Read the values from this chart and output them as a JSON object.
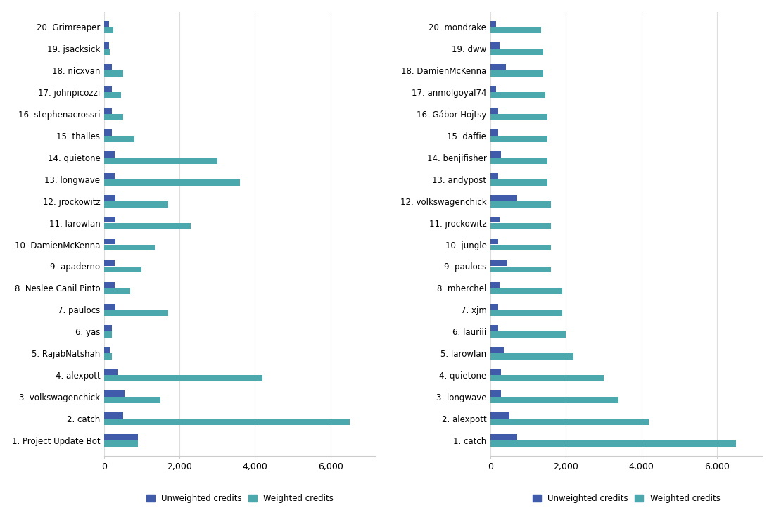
{
  "left_chart": {
    "labels": [
      "1. Project Update Bot",
      "2. catch",
      "3. volkswagenchick",
      "4. alexpott",
      "5. RajabNatshah",
      "6. yas",
      "7. paulocs",
      "8. Neslee Canil Pinto",
      "9. apaderno",
      "10. DamienMcKenna",
      "11. larowlan",
      "12. jrockowitz",
      "13. longwave",
      "14. quietone",
      "15. thalles",
      "16. stephenacrossri",
      "17. johnpicozzi",
      "18. nicxvan",
      "19. jsacksick",
      "20. Grimreaper"
    ],
    "unweighted": [
      900,
      500,
      550,
      350,
      150,
      200,
      300,
      280,
      280,
      300,
      300,
      300,
      280,
      280,
      200,
      200,
      200,
      200,
      130,
      130
    ],
    "weighted": [
      900,
      6500,
      1500,
      4200,
      200,
      200,
      1700,
      700,
      1000,
      1350,
      2300,
      1700,
      3600,
      3000,
      800,
      500,
      450,
      500,
      150,
      250
    ]
  },
  "right_chart": {
    "labels": [
      "1. catch",
      "2. alexpott",
      "3. longwave",
      "4. quietone",
      "5. larowlan",
      "6. lauriii",
      "7. xjm",
      "8. mherchel",
      "9. paulocs",
      "10. jungle",
      "11. jrockowitz",
      "12. volkswagenchick",
      "13. andypost",
      "14. benjifisher",
      "15. daffie",
      "16. Gábor Hojtsy",
      "17. anmolgoyal74",
      "18. DamienMcKenna",
      "19. dww",
      "20. mondrake"
    ],
    "unweighted": [
      700,
      500,
      280,
      280,
      350,
      200,
      200,
      250,
      450,
      200,
      250,
      700,
      200,
      280,
      200,
      200,
      150,
      400,
      250,
      150
    ],
    "weighted": [
      6500,
      4200,
      3400,
      3000,
      2200,
      2000,
      1900,
      1900,
      1600,
      1600,
      1600,
      1600,
      1500,
      1500,
      1500,
      1500,
      1450,
      1400,
      1400,
      1350
    ]
  },
  "unweighted_color": "#3f5ba9",
  "weighted_color": "#4ba8ad",
  "background_color": "#ffffff",
  "xlim": [
    0,
    7200
  ],
  "xticks": [
    0,
    2000,
    4000,
    6000
  ],
  "xticklabels": [
    "0",
    "2,000",
    "4,000",
    "6,000"
  ]
}
